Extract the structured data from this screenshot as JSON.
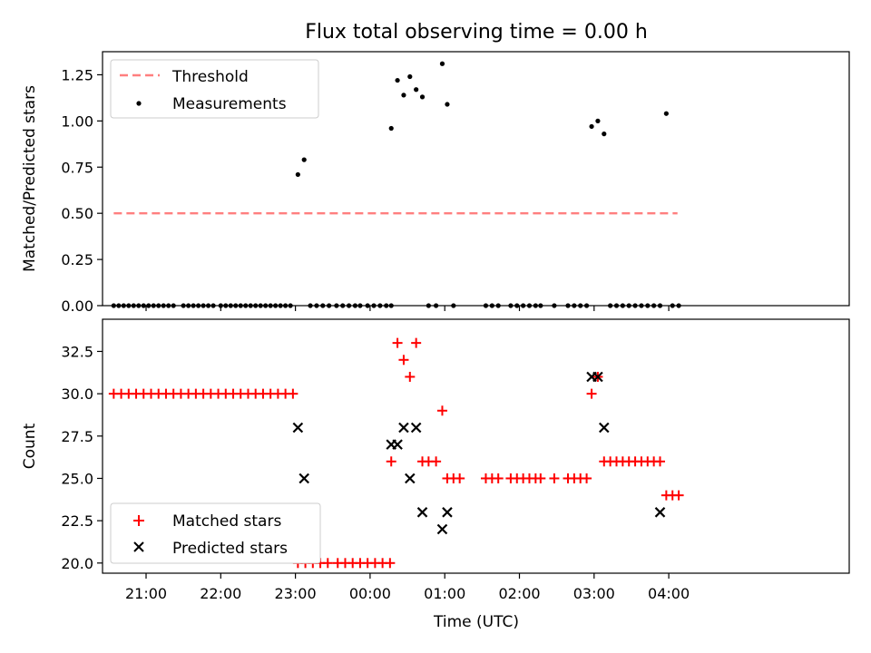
{
  "figure": {
    "title": "Flux total observing time = 0.00 h",
    "xlabel": "Time (UTC)"
  },
  "colors": {
    "threshold": "#ff7f7f",
    "measurements": "#000000",
    "matched": "#ff0000",
    "predicted": "#000000"
  },
  "chart_data": [
    {
      "type": "scatter",
      "ylabel": "Matched/Predicted stars",
      "ylim": [
        0,
        1.375
      ],
      "xlim_minutes_after_2040": [
        -15,
        585
      ],
      "yticks": [
        "0.00",
        "0.25",
        "0.50",
        "0.75",
        "1.00",
        "1.25"
      ],
      "xtick_labels": [
        "21:00",
        "22:00",
        "23:00",
        "00:00",
        "01:00",
        "02:00",
        "03:00",
        "04:00"
      ],
      "legend": {
        "placement": "upper-left",
        "entries": [
          "Threshold",
          "Measurements"
        ]
      },
      "series": [
        {
          "name": "Threshold",
          "kind": "dashed-line",
          "x": [
            "20:34",
            "04:07"
          ],
          "y": [
            0.5,
            0.5
          ]
        },
        {
          "name": "Measurements",
          "kind": "points",
          "x": [
            "20:34",
            "20:38",
            "20:42",
            "20:46",
            "20:50",
            "20:54",
            "20:58",
            "21:02",
            "21:06",
            "21:10",
            "21:14",
            "21:18",
            "21:22",
            "21:30",
            "21:34",
            "21:38",
            "21:42",
            "21:46",
            "21:50",
            "21:54",
            "22:00",
            "22:04",
            "22:08",
            "22:12",
            "22:16",
            "22:20",
            "22:24",
            "22:28",
            "22:32",
            "22:36",
            "22:40",
            "22:44",
            "22:48",
            "22:52",
            "22:56",
            "23:02",
            "23:07",
            "23:12",
            "23:17",
            "23:22",
            "23:27",
            "23:33",
            "23:38",
            "23:43",
            "23:48",
            "23:52",
            "23:58",
            "00:03",
            "00:08",
            "00:13",
            "00:17",
            "00:17",
            "00:22",
            "00:27",
            "00:32",
            "00:37",
            "00:42",
            "00:47",
            "00:53",
            "00:58",
            "01:02",
            "01:07",
            "01:33",
            "01:38",
            "01:43",
            "01:53",
            "01:58",
            "02:03",
            "02:08",
            "02:13",
            "02:17",
            "02:28",
            "02:39",
            "02:44",
            "02:49",
            "02:54",
            "02:58",
            "03:03",
            "03:08",
            "03:13",
            "03:18",
            "03:23",
            "03:28",
            "03:33",
            "03:38",
            "03:43",
            "03:48",
            "03:53",
            "03:58",
            "04:03",
            "04:08"
          ],
          "y": [
            0,
            0,
            0,
            0,
            0,
            0,
            0,
            0,
            0,
            0,
            0,
            0,
            0,
            0,
            0,
            0,
            0,
            0,
            0,
            0,
            0,
            0,
            0,
            0,
            0,
            0,
            0,
            0,
            0,
            0,
            0,
            0,
            0,
            0,
            0,
            0.71,
            0.79,
            0,
            0,
            0,
            0,
            0,
            0,
            0,
            0,
            0,
            0,
            0,
            0,
            0,
            0,
            0.96,
            1.22,
            1.14,
            1.24,
            1.17,
            1.13,
            0,
            0,
            1.31,
            1.09,
            0,
            0,
            0,
            0,
            0,
            0,
            0,
            0,
            0,
            0,
            0,
            0,
            0,
            0,
            0,
            0.97,
            1.0,
            0.93,
            0,
            0,
            0,
            0,
            0,
            0,
            0,
            0,
            0,
            1.04,
            0,
            0
          ]
        }
      ]
    },
    {
      "type": "scatter",
      "ylabel": "Count",
      "ylim": [
        19.4,
        34.4
      ],
      "xlim_minutes_after_2040": [
        -15,
        585
      ],
      "yticks": [
        "20.0",
        "22.5",
        "25.0",
        "27.5",
        "30.0",
        "32.5"
      ],
      "xtick_labels": [
        "21:00",
        "22:00",
        "23:00",
        "00:00",
        "01:00",
        "02:00",
        "03:00",
        "04:00"
      ],
      "legend": {
        "placement": "lower-left",
        "entries": [
          "Matched stars",
          "Predicted stars"
        ]
      },
      "series": [
        {
          "name": "Matched stars",
          "marker": "plus",
          "x": [
            "20:34",
            "20:40",
            "20:46",
            "20:52",
            "20:58",
            "21:04",
            "21:10",
            "21:16",
            "21:22",
            "21:28",
            "21:34",
            "21:40",
            "21:46",
            "21:52",
            "21:58",
            "22:04",
            "22:10",
            "22:16",
            "22:22",
            "22:28",
            "22:34",
            "22:40",
            "22:46",
            "22:52",
            "22:58",
            "23:02",
            "23:08",
            "23:14",
            "23:20",
            "23:26",
            "23:34",
            "23:40",
            "23:46",
            "23:52",
            "23:58",
            "00:04",
            "00:10",
            "00:16",
            "00:17",
            "00:22",
            "00:27",
            "00:32",
            "00:37",
            "00:42",
            "00:47",
            "00:53",
            "00:58",
            "01:02",
            "01:07",
            "01:12",
            "01:33",
            "01:38",
            "01:43",
            "01:53",
            "01:58",
            "02:03",
            "02:08",
            "02:13",
            "02:17",
            "02:28",
            "02:39",
            "02:44",
            "02:49",
            "02:54",
            "02:58",
            "03:03",
            "03:08",
            "03:13",
            "03:18",
            "03:23",
            "03:28",
            "03:33",
            "03:38",
            "03:43",
            "03:48",
            "03:53",
            "03:58",
            "04:03",
            "04:08"
          ],
          "y": [
            30,
            30,
            30,
            30,
            30,
            30,
            30,
            30,
            30,
            30,
            30,
            30,
            30,
            30,
            30,
            30,
            30,
            30,
            30,
            30,
            30,
            30,
            30,
            30,
            30,
            20,
            20,
            20,
            20,
            20,
            20,
            20,
            20,
            20,
            20,
            20,
            20,
            20,
            26,
            33,
            32,
            31,
            33,
            26,
            26,
            26,
            29,
            25,
            25,
            25,
            25,
            25,
            25,
            25,
            25,
            25,
            25,
            25,
            25,
            25,
            25,
            25,
            25,
            25,
            30,
            31,
            26,
            26,
            26,
            26,
            26,
            26,
            26,
            26,
            26,
            26,
            24,
            24,
            24
          ]
        },
        {
          "name": "Predicted stars",
          "marker": "x",
          "x": [
            "23:02",
            "23:07",
            "00:17",
            "00:22",
            "00:27",
            "00:32",
            "00:37",
            "00:42",
            "00:58",
            "01:02",
            "02:58",
            "03:03",
            "03:08",
            "03:53"
          ],
          "y": [
            28,
            25,
            27,
            27,
            28,
            25,
            28,
            23,
            22,
            23,
            31,
            31,
            28,
            23
          ]
        }
      ]
    }
  ]
}
